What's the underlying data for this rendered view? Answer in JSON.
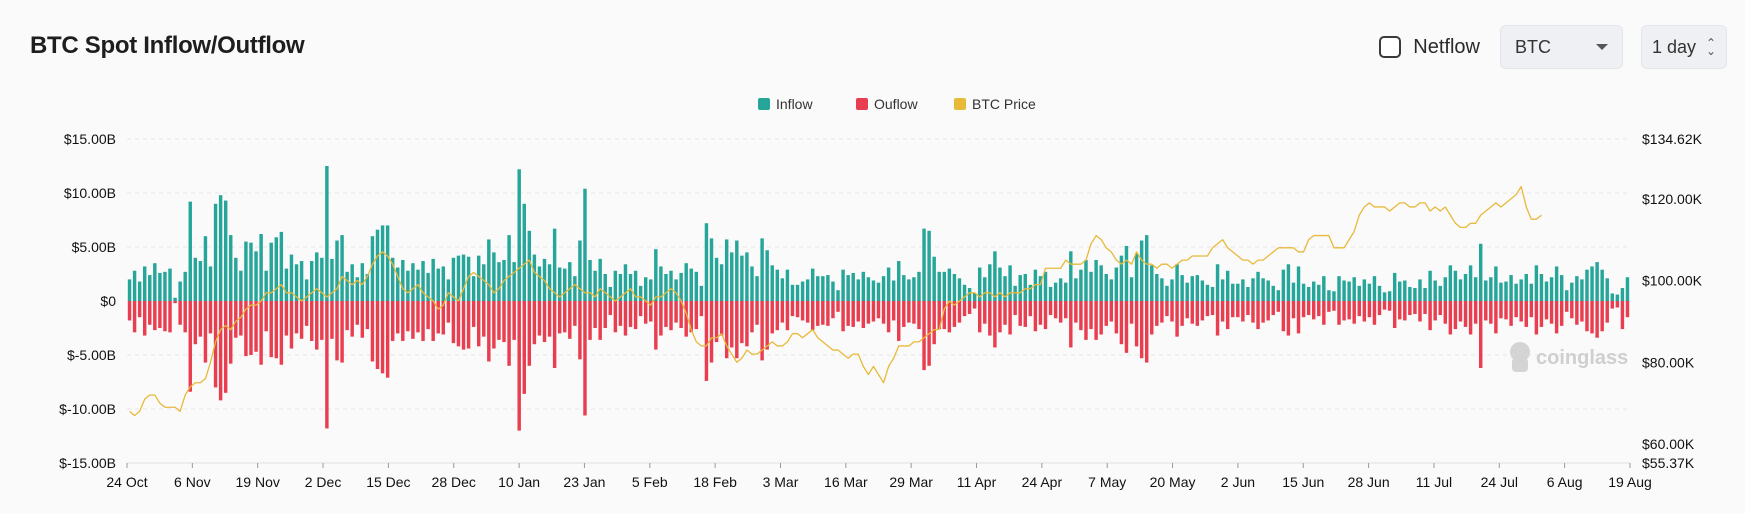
{
  "header": {
    "title": "BTC Spot Inflow/Outflow",
    "netflow_label": "Netflow",
    "netflow_checked": false,
    "coin_selected": "BTC",
    "interval_selected": "1 day"
  },
  "watermark": "coinglass",
  "colors": {
    "inflow": "#26a69a",
    "outflow": "#e83e4f",
    "price": "#e8b93a"
  },
  "chart_data": {
    "type": "bar",
    "legend": [
      "Inflow",
      "Ouflow",
      "BTC Price"
    ],
    "legend_position": "top-center",
    "x_tick_labels": [
      "24 Oct",
      "6 Nov",
      "19 Nov",
      "2 Dec",
      "15 Dec",
      "28 Dec",
      "10 Jan",
      "23 Jan",
      "5 Feb",
      "18 Feb",
      "3 Mar",
      "16 Mar",
      "29 Mar",
      "11 Apr",
      "24 Apr",
      "7 May",
      "20 May",
      "2 Jun",
      "15 Jun",
      "28 Jun",
      "11 Jul",
      "24 Jul",
      "6 Aug",
      "19 Aug"
    ],
    "left_axis": {
      "ylim": [
        -15,
        15
      ],
      "tick_values": [
        15,
        10,
        5,
        0,
        -5,
        -10,
        -15
      ],
      "tick_labels": [
        "$15.00B",
        "$10.00B",
        "$5.00B",
        "$0",
        "$-5.00B",
        "$-10.00B",
        "$-15.00B"
      ]
    },
    "right_axis": {
      "ylim": [
        55.37,
        134.62
      ],
      "tick_values": [
        134.62,
        120,
        100,
        80,
        60,
        55.37
      ],
      "tick_labels": [
        "$134.62K",
        "$120.00K",
        "$100.00K",
        "$80.00K",
        "$60.00K",
        "$55.37K"
      ]
    },
    "series": [
      {
        "name": "Inflow",
        "values": [
          2.0,
          2.8,
          1.8,
          3.2,
          2.4,
          3.5,
          2.6,
          2.7,
          3.0,
          0.3,
          1.8,
          2.7,
          9.2,
          4.0,
          3.7,
          6.0,
          3.2,
          9.0,
          9.8,
          9.3,
          6.1,
          4.0,
          2.8,
          5.5,
          5.4,
          4.6,
          6.2,
          2.8,
          5.4,
          5.9,
          6.4,
          3.0,
          4.3,
          3.4,
          3.7,
          2.0,
          3.7,
          4.5,
          4.0,
          12.5,
          3.9,
          5.6,
          6.1,
          2.7,
          3.4,
          2.2,
          3.5,
          2.5,
          6.0,
          6.6,
          7.0,
          7.0,
          4.0,
          3.1,
          3.8,
          2.8,
          3.5,
          2.9,
          3.7,
          2.6,
          3.9,
          3.0,
          3.2,
          2.0,
          4.0,
          4.2,
          4.3,
          4.1,
          2.3,
          4.2,
          3.4,
          5.7,
          4.5,
          3.6,
          3.8,
          6.1,
          3.6,
          12.2,
          9.0,
          6.5,
          4.3,
          3.2,
          3.9,
          3.4,
          6.7,
          3.1,
          3.0,
          3.6,
          2.3,
          5.6,
          10.4,
          3.8,
          2.8,
          3.9,
          2.5,
          1.3,
          2.8,
          2.5,
          3.4,
          2.5,
          2.8,
          1.4,
          2.2,
          2.0,
          4.8,
          3.2,
          2.5,
          2.8,
          2.0,
          2.6,
          3.5,
          3.0,
          2.7,
          1.4,
          7.2,
          5.8,
          4.0,
          3.4,
          5.7,
          4.5,
          5.6,
          4.2,
          4.5,
          3.2,
          2.3,
          5.8,
          4.7,
          3.3,
          2.9,
          2.1,
          2.9,
          1.5,
          1.5,
          1.8,
          2.0,
          3.0,
          2.3,
          2.3,
          2.4,
          1.8,
          1.0,
          2.9,
          2.4,
          2.6,
          2.0,
          2.7,
          2.2,
          1.9,
          1.7,
          2.3,
          3.1,
          1.9,
          3.7,
          2.4,
          2.0,
          2.2,
          2.7,
          6.7,
          6.5,
          4.1,
          2.7,
          2.7,
          3.0,
          2.5,
          2.1,
          1.5,
          1.2,
          0.7,
          3.1,
          2.2,
          3.4,
          4.6,
          3.1,
          2.3,
          3.3,
          1.4,
          2.4,
          2.5,
          1.5,
          2.9,
          2.3,
          2.7,
          1.3,
          1.7,
          2.1,
          1.7,
          4.6,
          2.1,
          2.9,
          3.8,
          2.7,
          3.8,
          3.3,
          2.5,
          2.0,
          3.1,
          4.2,
          5.1,
          2.2,
          4.4,
          5.6,
          6.1,
          3.3,
          2.5,
          2.1,
          1.4,
          2.0,
          3.4,
          2.4,
          1.7,
          2.3,
          2.4,
          1.9,
          1.5,
          1.3,
          3.4,
          2.0,
          2.8,
          1.6,
          1.6,
          2.0,
          1.3,
          2.1,
          2.7,
          2.1,
          1.9,
          1.4,
          1.0,
          2.9,
          3.4,
          1.7,
          3.2,
          1.6,
          1.3,
          1.8,
          1.5,
          2.3,
          1.0,
          0.9,
          2.3,
          1.9,
          1.8,
          2.2,
          1.4,
          2.0,
          1.6,
          2.3,
          1.4,
          0.8,
          0.9,
          2.6,
          1.8,
          1.9,
          1.3,
          1.2,
          2.0,
          1.2,
          2.8,
          1.9,
          1.4,
          2.2,
          3.3,
          2.8,
          2.0,
          2.5,
          3.3,
          2.2,
          5.3,
          1.9,
          2.2,
          3.2,
          1.7,
          1.8,
          2.4,
          1.6,
          2.0,
          2.5,
          1.6,
          3.3,
          2.5,
          1.8,
          2.2,
          3.2,
          2.4,
          1.0,
          1.7,
          2.3,
          2.0,
          2.9,
          3.2,
          3.6,
          2.9,
          2.1,
          0.7,
          0.6,
          1.2,
          2.2
        ]
      },
      {
        "name": "Ouflow",
        "values": [
          -1.8,
          -2.9,
          -1.5,
          -3.2,
          -2.2,
          -2.7,
          -2.5,
          -2.8,
          -2.9,
          -0.2,
          -2.2,
          -2.9,
          -8.4,
          -4.0,
          -3.3,
          -5.7,
          -3.0,
          -8.0,
          -9.2,
          -8.5,
          -5.8,
          -3.4,
          -3.2,
          -5.1,
          -5.0,
          -4.7,
          -5.9,
          -2.8,
          -5.2,
          -5.3,
          -5.9,
          -3.2,
          -4.4,
          -3.0,
          -3.5,
          -2.3,
          -3.7,
          -4.5,
          -3.6,
          -11.8,
          -3.5,
          -5.5,
          -5.7,
          -2.7,
          -3.3,
          -2.2,
          -3.4,
          -2.6,
          -5.6,
          -6.3,
          -6.7,
          -7.1,
          -3.7,
          -3.0,
          -3.7,
          -2.8,
          -3.5,
          -2.9,
          -3.7,
          -2.6,
          -3.7,
          -3.0,
          -3.1,
          -2.0,
          -3.9,
          -4.2,
          -4.5,
          -4.4,
          -2.4,
          -4.2,
          -3.3,
          -5.6,
          -4.4,
          -3.6,
          -3.8,
          -6.0,
          -3.6,
          -12.0,
          -8.6,
          -6.0,
          -4.0,
          -3.2,
          -3.8,
          -3.3,
          -6.2,
          -3.0,
          -2.9,
          -3.5,
          -2.3,
          -5.4,
          -10.6,
          -3.6,
          -2.5,
          -3.6,
          -2.5,
          -1.3,
          -2.9,
          -2.3,
          -3.2,
          -2.4,
          -2.6,
          -1.4,
          -2.1,
          -1.9,
          -4.5,
          -3.2,
          -2.4,
          -2.7,
          -2.0,
          -2.5,
          -3.3,
          -2.9,
          -2.6,
          -1.4,
          -7.4,
          -5.7,
          -3.8,
          -3.2,
          -5.3,
          -4.3,
          -5.3,
          -3.9,
          -4.2,
          -2.9,
          -2.2,
          -5.5,
          -4.5,
          -3.0,
          -2.7,
          -2.0,
          -2.7,
          -1.4,
          -1.5,
          -1.8,
          -2.0,
          -2.7,
          -2.3,
          -2.2,
          -2.3,
          -1.6,
          -1.0,
          -2.8,
          -2.3,
          -2.4,
          -1.9,
          -2.5,
          -2.1,
          -1.9,
          -1.6,
          -2.1,
          -2.9,
          -1.8,
          -3.7,
          -2.4,
          -2.0,
          -2.1,
          -2.6,
          -6.4,
          -6.0,
          -4.0,
          -2.6,
          -2.6,
          -2.9,
          -2.4,
          -2.0,
          -1.4,
          -1.2,
          -0.7,
          -2.9,
          -2.1,
          -3.2,
          -4.3,
          -2.9,
          -2.2,
          -3.1,
          -1.3,
          -2.3,
          -2.4,
          -1.4,
          -2.8,
          -2.2,
          -2.6,
          -1.3,
          -1.6,
          -2.0,
          -1.6,
          -4.3,
          -2.0,
          -2.7,
          -3.6,
          -2.6,
          -3.6,
          -3.1,
          -2.3,
          -1.9,
          -3.0,
          -4.0,
          -4.8,
          -2.1,
          -4.2,
          -5.3,
          -5.7,
          -3.1,
          -2.3,
          -2.0,
          -1.4,
          -1.9,
          -3.3,
          -2.3,
          -1.6,
          -2.1,
          -2.3,
          -1.8,
          -1.4,
          -1.3,
          -3.2,
          -1.9,
          -2.6,
          -1.5,
          -1.5,
          -1.9,
          -1.3,
          -2.0,
          -2.6,
          -2.0,
          -1.8,
          -1.3,
          -1.0,
          -2.8,
          -3.2,
          -1.6,
          -3.0,
          -1.5,
          -1.3,
          -1.7,
          -1.4,
          -2.2,
          -1.0,
          -0.9,
          -2.2,
          -1.8,
          -1.7,
          -2.1,
          -1.4,
          -1.9,
          -1.5,
          -2.2,
          -1.3,
          -0.8,
          -0.9,
          -2.5,
          -1.7,
          -1.8,
          -1.3,
          -1.2,
          -1.9,
          -1.2,
          -2.7,
          -1.8,
          -1.3,
          -2.1,
          -3.1,
          -2.6,
          -1.9,
          -2.4,
          -3.1,
          -2.1,
          -6.2,
          -1.8,
          -2.1,
          -3.0,
          -1.6,
          -1.7,
          -2.3,
          -1.5,
          -1.9,
          -2.4,
          -1.5,
          -3.1,
          -2.4,
          -1.7,
          -2.1,
          -3.0,
          -2.3,
          -1.0,
          -1.6,
          -2.2,
          -1.9,
          -2.8,
          -3.0,
          -3.4,
          -2.8,
          -2.0,
          -0.7,
          -0.6,
          -2.6,
          -1.5
        ]
      },
      {
        "name": "BTC Price",
        "unit": "K USD",
        "values": [
          68,
          67,
          68,
          71,
          72,
          72,
          70,
          69,
          69,
          69,
          68,
          72,
          74,
          75,
          75,
          76,
          80,
          85,
          88,
          89,
          88,
          90,
          91,
          93,
          94,
          94,
          95,
          97,
          97,
          98,
          99,
          97,
          97,
          96,
          95,
          96,
          97,
          98,
          97,
          96,
          97,
          98,
          101,
          100,
          99,
          100,
          99,
          101,
          104,
          106,
          107,
          106,
          104,
          101,
          98,
          97,
          98,
          99,
          97,
          96,
          95,
          93,
          94,
          97,
          96,
          95,
          98,
          101,
          102,
          101,
          100,
          99,
          97,
          98,
          100,
          101,
          102,
          103,
          104,
          105,
          102,
          101,
          100,
          98,
          97,
          96,
          97,
          98,
          99,
          98,
          97,
          97,
          96,
          98,
          97,
          96,
          95,
          96,
          97,
          98,
          96,
          96,
          95,
          94,
          96,
          96,
          97,
          98,
          97,
          95,
          92,
          88,
          85,
          84,
          84,
          86,
          86,
          87,
          84,
          82,
          80,
          81,
          83,
          82,
          82,
          83,
          84,
          85,
          84,
          84,
          85,
          87,
          87,
          86,
          87,
          88,
          86,
          85,
          84,
          83,
          83,
          82,
          81,
          82,
          82,
          79,
          77,
          79,
          77,
          75,
          79,
          81,
          84,
          84,
          84,
          85,
          85,
          86,
          87,
          88,
          88,
          93,
          95,
          94,
          95,
          96,
          97,
          97,
          96,
          97,
          97,
          96,
          97,
          96,
          97,
          97,
          97,
          98,
          98,
          99,
          99,
          103,
          103,
          103,
          103,
          105,
          104,
          104,
          104,
          105,
          109,
          111,
          110,
          108,
          107,
          105,
          104,
          105,
          104,
          107,
          105,
          104,
          104,
          103,
          104,
          104,
          103,
          104,
          105,
          105,
          106,
          106,
          106,
          106,
          108,
          109,
          110,
          108,
          107,
          106,
          105,
          105,
          104,
          105,
          105,
          106,
          107,
          108,
          108,
          108,
          108,
          107,
          107,
          110,
          111,
          111,
          111,
          111,
          108,
          108,
          108,
          110,
          112,
          116,
          118,
          119,
          118,
          118,
          118,
          117,
          118,
          119,
          119,
          118,
          118,
          119,
          119,
          117,
          118,
          117,
          118,
          116,
          114,
          113,
          113,
          114,
          114,
          116,
          117,
          118,
          119,
          118,
          119,
          120,
          121,
          123,
          118,
          115,
          115,
          116
        ]
      }
    ],
    "annotation": "coinglass"
  }
}
